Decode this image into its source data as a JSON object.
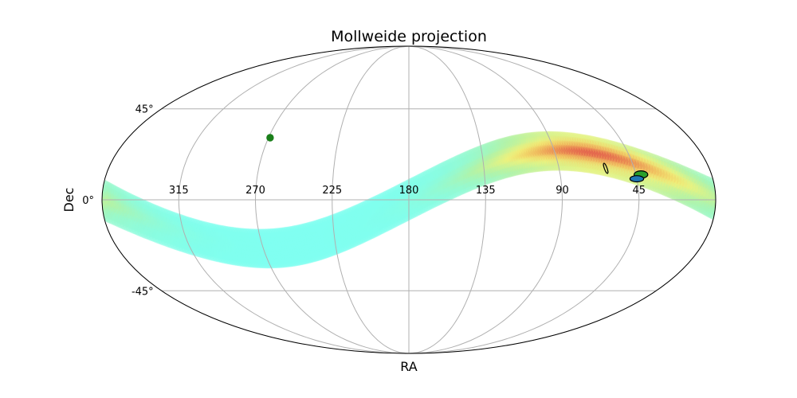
{
  "chart_data": {
    "type": "scatter",
    "projection": "mollweide",
    "title": "Mollweide projection",
    "xlabel": "RA",
    "ylabel": "Dec",
    "x_ticks": [
      {
        "value": 315,
        "label": "315"
      },
      {
        "value": 270,
        "label": "270"
      },
      {
        "value": 225,
        "label": "225"
      },
      {
        "value": 180,
        "label": "180"
      },
      {
        "value": 135,
        "label": "135"
      },
      {
        "value": 90,
        "label": "90"
      },
      {
        "value": 45,
        "label": "45"
      }
    ],
    "y_ticks": [
      {
        "value": 45,
        "label": "45°"
      },
      {
        "value": 0,
        "label": "0°"
      },
      {
        "value": -45,
        "label": "-45°"
      }
    ],
    "meridians": [
      0,
      45,
      90,
      135,
      180,
      225,
      270,
      315,
      360
    ],
    "parallels": [
      -45,
      0,
      45
    ],
    "grid": true,
    "colormap": [
      "#7ffff0",
      "#b3f2a6",
      "#f2f27a",
      "#f0b45a",
      "#e0504a"
    ],
    "band": {
      "description_values": "probability band (sinusoidal sky localization)",
      "ra_min": 0,
      "ra_max": 360,
      "center_dec_amplitude": 23.5,
      "center_dec_phase_ra": 90,
      "width_deg": 12,
      "peak_ra": 70,
      "peak_spread": 45
    },
    "markers": [
      {
        "ra": 269,
        "dec": 30,
        "shape": "circle",
        "fill": "#1a7f1a",
        "size_deg": 2.2
      },
      {
        "ra": 62,
        "dec": 15,
        "shape": "ellipse",
        "fill": "none",
        "rx_deg": 0.8,
        "ry_deg": 3.2,
        "angle": -20
      },
      {
        "ra": 42,
        "dec": 12,
        "shape": "ellipse",
        "fill": "#2ca02c",
        "rx_deg": 4.0,
        "ry_deg": 2.2,
        "angle": 0
      },
      {
        "ra": 45,
        "dec": 10,
        "shape": "ellipse",
        "fill": "#1f77b4",
        "rx_deg": 4.0,
        "ry_deg": 1.8,
        "angle": 0
      }
    ]
  }
}
